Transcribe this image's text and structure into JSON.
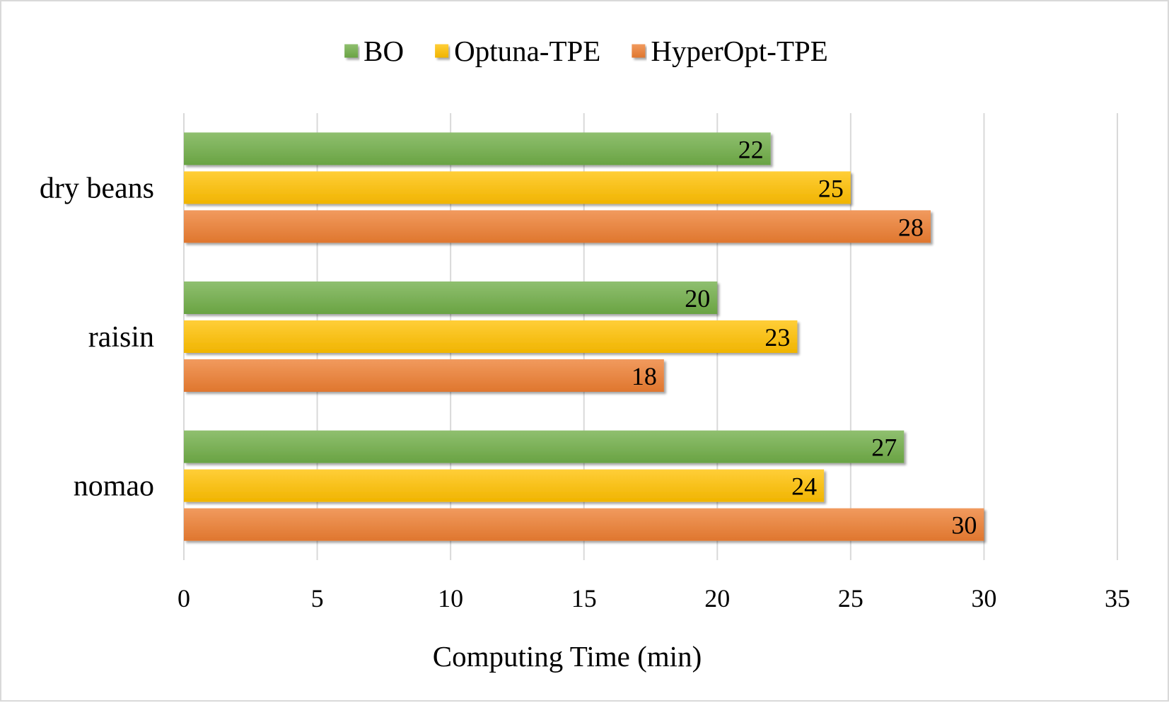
{
  "chart_data": {
    "type": "bar",
    "orientation": "horizontal",
    "categories": [
      "dry beans",
      "raisin",
      "nomao"
    ],
    "series": [
      {
        "name": "BO",
        "color": "#70ad47",
        "values": [
          22,
          20,
          27
        ]
      },
      {
        "name": "Optuna-TPE",
        "color": "#ffc000",
        "values": [
          25,
          23,
          24
        ]
      },
      {
        "name": "HyperOpt-TPE",
        "color": "#ed7d31",
        "values": [
          28,
          18,
          30
        ]
      }
    ],
    "title": "",
    "xlabel": "Computing Time (min)",
    "ylabel": "",
    "xlim": [
      0,
      35
    ],
    "xticks": [
      0,
      5,
      10,
      15,
      20,
      25,
      30,
      35
    ],
    "grid": "vertical",
    "legend_position": "top",
    "data_labels": true
  }
}
